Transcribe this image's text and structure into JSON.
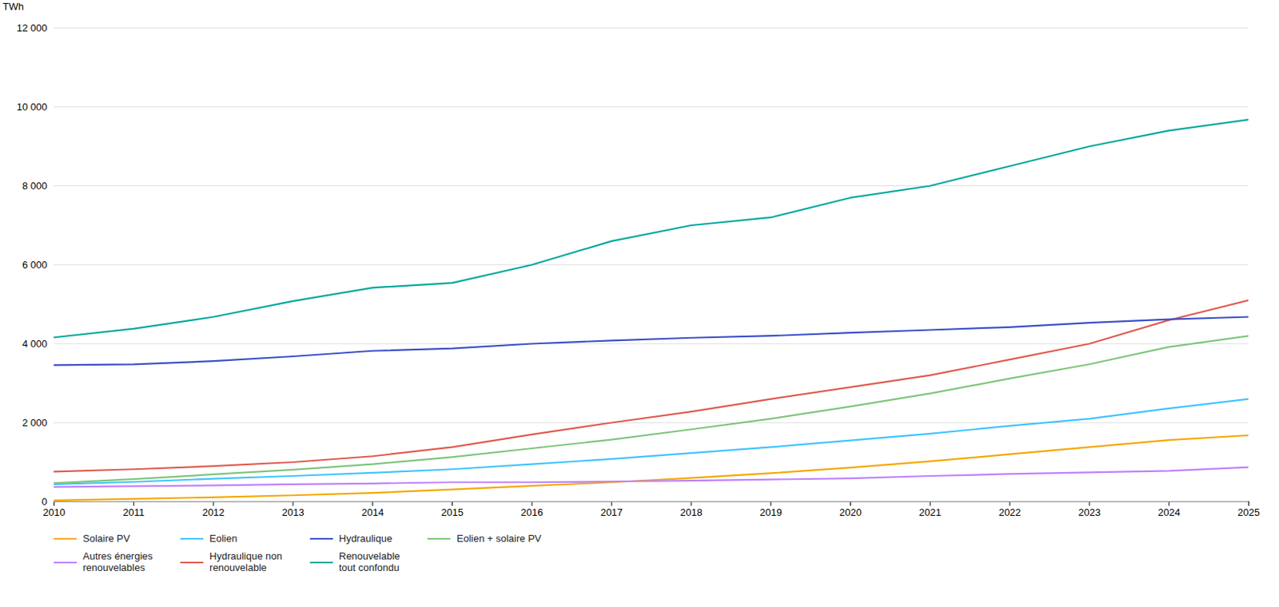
{
  "chart_data": {
    "type": "line",
    "ylabel": "TWh",
    "x": [
      2010,
      2011,
      2012,
      2013,
      2014,
      2015,
      2016,
      2017,
      2018,
      2019,
      2020,
      2021,
      2022,
      2023,
      2024,
      2025
    ],
    "series": [
      {
        "name": "Solaire PV",
        "color": "#F5A800",
        "values": [
          30,
          70,
          110,
          160,
          220,
          310,
          400,
          490,
          600,
          720,
          860,
          1020,
          1200,
          1380,
          1560,
          1680
        ]
      },
      {
        "name": "Autres énergies\nrenouvelables",
        "color": "#BF80FF",
        "values": [
          370,
          390,
          410,
          440,
          460,
          490,
          490,
          510,
          530,
          560,
          590,
          650,
          700,
          740,
          780,
          870
        ]
      },
      {
        "name": "Eolien",
        "color": "#40C4FF",
        "values": [
          440,
          500,
          580,
          650,
          730,
          820,
          950,
          1080,
          1230,
          1380,
          1550,
          1720,
          1920,
          2100,
          2360,
          2600
        ]
      },
      {
        "name": "Hydraulique non\nrenouvelable",
        "color": "#E05A4E",
        "values": [
          760,
          820,
          900,
          1000,
          1150,
          1380,
          1700,
          2000,
          2280,
          2600,
          2900,
          3200,
          3600,
          4000,
          4600,
          5100
        ]
      },
      {
        "name": "Hydraulique",
        "color": "#3B4FC8",
        "values": [
          3460,
          3480,
          3560,
          3680,
          3820,
          3880,
          4000,
          4080,
          4150,
          4200,
          4280,
          4350,
          4420,
          4530,
          4620,
          4680
        ]
      },
      {
        "name": "Renouvelable\ntout confondu",
        "color": "#00A89D",
        "values": [
          4160,
          4380,
          4680,
          5080,
          5420,
          5540,
          6000,
          6600,
          7000,
          7200,
          7700,
          8000,
          8500,
          9000,
          9400,
          9680
        ]
      },
      {
        "name": "Eolien + solaire PV",
        "color": "#7DC67A",
        "values": [
          470,
          570,
          690,
          810,
          950,
          1130,
          1350,
          1570,
          1830,
          2100,
          2410,
          2740,
          3120,
          3480,
          3920,
          4200
        ]
      }
    ],
    "xlim": [
      2010,
      2025
    ],
    "xticks": [
      2010,
      2011,
      2012,
      2013,
      2014,
      2015,
      2016,
      2017,
      2018,
      2019,
      2020,
      2021,
      2022,
      2023,
      2024,
      2025
    ],
    "ylim": [
      0,
      12000
    ],
    "yticks": [
      0,
      {
        "value": 2000,
        "label": "2 000"
      },
      {
        "value": 4000,
        "label": "4 000"
      },
      {
        "value": 6000,
        "label": "6 000"
      },
      {
        "value": 8000,
        "label": "8 000"
      },
      {
        "value": 10000,
        "label": "10 000"
      },
      {
        "value": 12000,
        "label": "12 000"
      }
    ],
    "grid": true,
    "legend": "bottom"
  }
}
